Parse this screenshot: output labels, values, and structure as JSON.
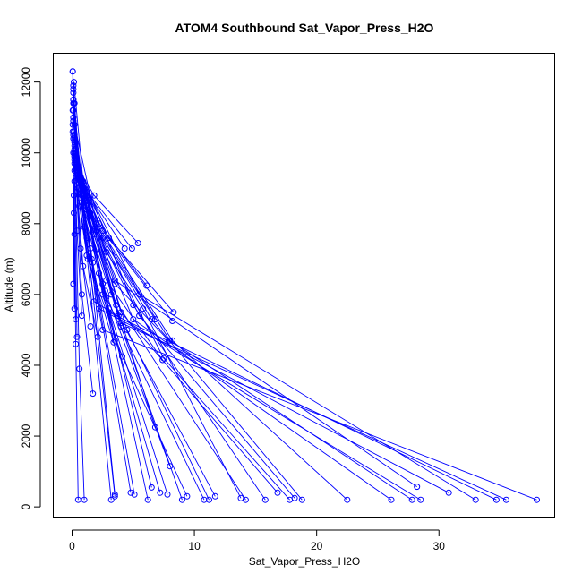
{
  "chart_data": {
    "type": "line",
    "title": "ATOM4 Southbound Sat_Vapor_Press_H2O",
    "xlabel": "Sat_Vapor_Press_H2O",
    "ylabel": "Altitude (m)",
    "xlim": [
      -1.5,
      39.5
    ],
    "ylim": [
      -300,
      12800
    ],
    "x_ticks": [
      0,
      10,
      20,
      30
    ],
    "y_ticks": [
      0,
      2000,
      4000,
      6000,
      8000,
      10000,
      12000
    ],
    "x_tick_labels": [
      "0",
      "10",
      "20",
      "30"
    ],
    "y_tick_labels": [
      "0",
      "2000",
      "4000",
      "6000",
      "8000",
      "10000",
      "12000"
    ],
    "grid": false,
    "legend": "none",
    "colors": {
      "series": "#0000ff",
      "axes": "#000000"
    },
    "series": [
      {
        "x": [
          38.0,
          2.5,
          0.6,
          0.1,
          0.05
        ],
        "y": [
          200,
          5000,
          8500,
          11000,
          12300
        ]
      },
      {
        "x": [
          35.5,
          4.0,
          0.8,
          0.2,
          0.05
        ],
        "y": [
          200,
          5200,
          8800,
          11400,
          12300
        ]
      },
      {
        "x": [
          34.7,
          3.0,
          0.5,
          0.1
        ],
        "y": [
          200,
          5500,
          9000,
          11800
        ]
      },
      {
        "x": [
          33.0,
          5.5,
          0.9,
          0.15
        ],
        "y": [
          200,
          6000,
          9200,
          12000
        ]
      },
      {
        "x": [
          30.8,
          2.2,
          0.4,
          0.1
        ],
        "y": [
          400,
          5600,
          9500,
          11900
        ]
      },
      {
        "x": [
          28.5,
          1.8,
          0.4
        ],
        "y": [
          200,
          5800,
          9600
        ]
      },
      {
        "x": [
          28.2,
          3.5,
          0.6,
          0.1
        ],
        "y": [
          570,
          6400,
          9400,
          10500
        ]
      },
      {
        "x": [
          27.8,
          8.0,
          1.5,
          0.2
        ],
        "y": [
          200,
          4700,
          8200,
          10200
        ]
      },
      {
        "x": [
          26.1,
          5.0,
          1.0,
          0.15
        ],
        "y": [
          200,
          5300,
          8600,
          10600
        ]
      },
      {
        "x": [
          22.5,
          8.2,
          2.0,
          0.2
        ],
        "y": [
          200,
          4700,
          8000,
          10800
        ]
      },
      {
        "x": [
          18.8,
          6.5,
          2.5,
          0.3
        ],
        "y": [
          200,
          5300,
          7600,
          9900
        ]
      },
      {
        "x": [
          18.2,
          5.5,
          2.0,
          0.3
        ],
        "y": [
          250,
          5400,
          7800,
          10100
        ]
      },
      {
        "x": [
          17.8,
          7.5,
          1.2,
          0.2
        ],
        "y": [
          200,
          4200,
          8400,
          10400
        ]
      },
      {
        "x": [
          16.8,
          4.0,
          0.8,
          0.15
        ],
        "y": [
          400,
          5500,
          9100,
          11400
        ]
      },
      {
        "x": [
          15.8,
          5.0,
          1.5,
          0.2
        ],
        "y": [
          200,
          5700,
          8800,
          10000
        ]
      },
      {
        "x": [
          14.2,
          3.2,
          0.7,
          0.1
        ],
        "y": [
          200,
          6000,
          9300,
          11500
        ]
      },
      {
        "x": [
          13.8,
          5.8,
          2.8,
          0.3
        ],
        "y": [
          250,
          5600,
          7200,
          9600
        ]
      },
      {
        "x": [
          11.7,
          3.8,
          0.9
        ],
        "y": [
          300,
          5400,
          9000
        ]
      },
      {
        "x": [
          11.2,
          4.5,
          1.5,
          0.2
        ],
        "y": [
          200,
          5000,
          8300,
          10300
        ]
      },
      {
        "x": [
          10.8,
          2.8,
          0.5
        ],
        "y": [
          200,
          5900,
          9300
        ]
      },
      {
        "x": [
          9.4,
          3.5,
          1.0,
          0.2
        ],
        "y": [
          300,
          4700,
          8700,
          9800
        ]
      },
      {
        "x": [
          9.0,
          4.0,
          1.8,
          0.2
        ],
        "y": [
          200,
          5100,
          7700,
          9700
        ]
      },
      {
        "x": [
          8.0,
          2.7,
          0.6,
          0.1
        ],
        "y": [
          1150,
          6100,
          9300,
          10900
        ]
      },
      {
        "x": [
          7.8,
          3.0,
          0.8
        ],
        "y": [
          350,
          5600,
          9100
        ]
      },
      {
        "x": [
          7.2,
          2.5,
          0.6,
          0.1
        ],
        "y": [
          400,
          6000,
          9400,
          11000
        ]
      },
      {
        "x": [
          6.8,
          3.6,
          1.2
        ],
        "y": [
          2250,
          5700,
          8800
        ]
      },
      {
        "x": [
          6.5,
          2.5,
          0.9,
          0.1
        ],
        "y": [
          550,
          6300,
          9000,
          11200
        ]
      },
      {
        "x": [
          6.2,
          2.2,
          0.7
        ],
        "y": [
          200,
          6600,
          9200
        ]
      },
      {
        "x": [
          5.1,
          1.7,
          0.5,
          0.1
        ],
        "y": [
          350,
          6900,
          9500,
          11400
        ]
      },
      {
        "x": [
          4.8,
          1.6,
          0.4
        ],
        "y": [
          400,
          7000,
          9600
        ]
      },
      {
        "x": [
          3.5,
          1.5,
          0.5,
          0.1
        ],
        "y": [
          350,
          7300,
          9500,
          11500
        ]
      },
      {
        "x": [
          3.5,
          1.2,
          0.3
        ],
        "y": [
          300,
          7600,
          9700
        ]
      },
      {
        "x": [
          3.2,
          1.0,
          0.3,
          0.1
        ],
        "y": [
          200,
          7900,
          9800,
          11700
        ]
      },
      {
        "x": [
          1.0,
          0.6,
          0.2
        ],
        "y": [
          200,
          3900,
          9900
        ]
      },
      {
        "x": [
          0.5,
          0.3,
          0.1
        ],
        "y": [
          200,
          4600,
          10000
        ]
      },
      {
        "x": [
          1.7,
          0.8,
          0.2
        ],
        "y": [
          3200,
          6000,
          10100
        ]
      },
      {
        "x": [
          5.4,
          1.8,
          0.4
        ],
        "y": [
          7450,
          8800,
          9600
        ]
      },
      {
        "x": [
          4.3,
          1.2,
          0.2
        ],
        "y": [
          7300,
          8900,
          10300
        ]
      },
      {
        "x": [
          4.9,
          1.0,
          0.2
        ],
        "y": [
          7300,
          9000,
          10500
        ]
      },
      {
        "x": [
          6.1,
          2.2,
          0.6
        ],
        "y": [
          6250,
          8000,
          9300
        ]
      },
      {
        "x": [
          8.3,
          3.0,
          0.8
        ],
        "y": [
          5500,
          7600,
          9200
        ]
      },
      {
        "x": [
          8.2,
          2.5,
          0.5
        ],
        "y": [
          5250,
          7800,
          9400
        ]
      },
      {
        "x": [
          6.8,
          1.9,
          0.3
        ],
        "y": [
          5300,
          7900,
          9800
        ]
      },
      {
        "x": [
          7.9,
          3.5,
          1.0
        ],
        "y": [
          4700,
          6300,
          8700
        ]
      },
      {
        "x": [
          7.4,
          2.8,
          0.8
        ],
        "y": [
          4150,
          6400,
          8600
        ]
      },
      {
        "x": [
          4.1,
          1.3,
          0.3
        ],
        "y": [
          4250,
          7000,
          9300
        ]
      },
      {
        "x": [
          3.4,
          1.2,
          0.2
        ],
        "y": [
          4650,
          7100,
          9500
        ]
      },
      {
        "x": [
          2.1,
          0.9,
          0.2
        ],
        "y": [
          4800,
          6800,
          9900
        ]
      },
      {
        "x": [
          1.5,
          0.7,
          0.2
        ],
        "y": [
          5100,
          7300,
          10000
        ]
      },
      {
        "x": [
          0.8,
          0.4,
          0.1
        ],
        "y": [
          5400,
          7800,
          10400
        ]
      },
      {
        "x": [
          0.3,
          0.2,
          0.05
        ],
        "y": [
          5300,
          7700,
          10600
        ]
      },
      {
        "x": [
          0.2,
          0.15,
          0.05
        ],
        "y": [
          5600,
          8300,
          10800
        ]
      },
      {
        "x": [
          0.1,
          0.15,
          0.05
        ],
        "y": [
          6300,
          8800,
          11200
        ]
      },
      {
        "x": [
          0.4,
          0.2
        ],
        "y": [
          4800,
          9200
        ]
      }
    ]
  }
}
